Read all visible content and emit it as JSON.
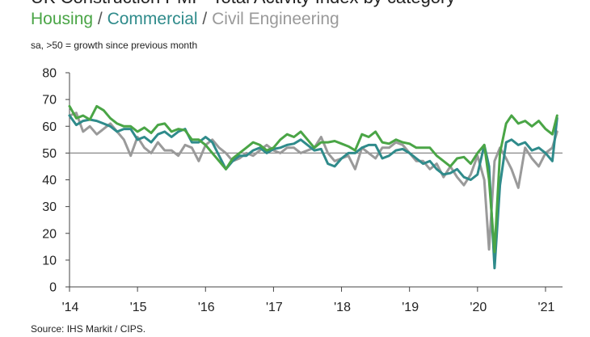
{
  "title": "UK Construction PMI - Total Activity Index by category",
  "subtitle": "sa, >50 = growth since previous month",
  "source": "Source: IHS Markit / CIPS.",
  "legend": {
    "separator": " / ",
    "items": [
      {
        "name": "Housing",
        "color": "#4aa546"
      },
      {
        "name": "Commercial",
        "color": "#2f8b8b"
      },
      {
        "name": "Civil Engineering",
        "color": "#9a9a9a"
      }
    ]
  },
  "chart_data": {
    "type": "line",
    "title": "UK Construction PMI - Total Activity Index by category",
    "ylabel": "sa, >50 = growth since previous month",
    "xlabel": "",
    "ylim": [
      0,
      80
    ],
    "yticks": [
      "0",
      "10",
      "20",
      "30",
      "40",
      "50",
      "60",
      "70",
      "80"
    ],
    "xlim": [
      2014.0,
      2021.25
    ],
    "xticks": [
      {
        "label": "'14",
        "x": 2014
      },
      {
        "label": "'15",
        "x": 2015
      },
      {
        "label": "'16",
        "x": 2016
      },
      {
        "label": "'17",
        "x": 2017
      },
      {
        "label": "'18",
        "x": 2018
      },
      {
        "label": "'19",
        "x": 2019
      },
      {
        "label": "'20",
        "x": 2020
      },
      {
        "label": "'21",
        "x": 2021
      }
    ],
    "reference_line": 50,
    "series": [
      {
        "name": "Housing",
        "color": "#4aa546",
        "x": [
          2014.0,
          2014.1,
          2014.2,
          2014.3,
          2014.4,
          2014.5,
          2014.6,
          2014.7,
          2014.8,
          2014.9,
          2015.0,
          2015.1,
          2015.2,
          2015.3,
          2015.4,
          2015.5,
          2015.6,
          2015.7,
          2015.8,
          2015.9,
          2016.0,
          2016.1,
          2016.2,
          2016.3,
          2016.4,
          2016.5,
          2016.6,
          2016.7,
          2016.8,
          2016.9,
          2017.0,
          2017.1,
          2017.2,
          2017.3,
          2017.4,
          2017.5,
          2017.6,
          2017.7,
          2017.8,
          2017.9,
          2018.0,
          2018.1,
          2018.2,
          2018.3,
          2018.4,
          2018.5,
          2018.6,
          2018.7,
          2018.8,
          2018.9,
          2019.0,
          2019.1,
          2019.2,
          2019.3,
          2019.4,
          2019.5,
          2019.6,
          2019.7,
          2019.8,
          2019.9,
          2020.0,
          2020.1,
          2020.17,
          2020.25,
          2020.33,
          2020.42,
          2020.5,
          2020.6,
          2020.7,
          2020.8,
          2020.9,
          2021.0,
          2021.1,
          2021.17
        ],
        "values": [
          67.5,
          63,
          64,
          62.5,
          67.5,
          66,
          63,
          61,
          60,
          60,
          58,
          59.5,
          57.5,
          60.5,
          61,
          58,
          59,
          58.5,
          55,
          55,
          53,
          50,
          47,
          44,
          48,
          50,
          52,
          54,
          53,
          51,
          52,
          55,
          57,
          56,
          58,
          55,
          52,
          54,
          54,
          54.5,
          53.5,
          52.5,
          51,
          57,
          56,
          58,
          54,
          53.5,
          55,
          54,
          53.5,
          52,
          52,
          52,
          49,
          47,
          45,
          48,
          48.5,
          46,
          50,
          53,
          40,
          13,
          50,
          61,
          64,
          61,
          62,
          60,
          62,
          59,
          57,
          64
        ]
      },
      {
        "name": "Commercial",
        "color": "#2f8b8b",
        "x": [
          2014.0,
          2014.1,
          2014.2,
          2014.3,
          2014.4,
          2014.5,
          2014.6,
          2014.7,
          2014.8,
          2014.9,
          2015.0,
          2015.1,
          2015.2,
          2015.3,
          2015.4,
          2015.5,
          2015.6,
          2015.7,
          2015.8,
          2015.9,
          2016.0,
          2016.1,
          2016.2,
          2016.3,
          2016.4,
          2016.5,
          2016.6,
          2016.7,
          2016.8,
          2016.9,
          2017.0,
          2017.1,
          2017.2,
          2017.3,
          2017.4,
          2017.5,
          2017.6,
          2017.7,
          2017.8,
          2017.9,
          2018.0,
          2018.1,
          2018.2,
          2018.3,
          2018.4,
          2018.5,
          2018.6,
          2018.7,
          2018.8,
          2018.9,
          2019.0,
          2019.1,
          2019.2,
          2019.3,
          2019.4,
          2019.5,
          2019.6,
          2019.7,
          2019.8,
          2019.9,
          2020.0,
          2020.1,
          2020.17,
          2020.25,
          2020.33,
          2020.42,
          2020.5,
          2020.6,
          2020.7,
          2020.8,
          2020.9,
          2021.0,
          2021.1,
          2021.17
        ],
        "values": [
          64,
          60.5,
          62,
          62.5,
          62,
          61,
          60,
          58,
          59,
          59,
          55,
          56,
          54,
          57,
          58,
          56,
          58,
          59,
          54,
          54,
          56,
          54,
          49,
          44,
          47,
          49,
          49,
          51,
          52,
          50,
          51.5,
          52,
          53,
          53.5,
          55,
          53,
          51,
          51.5,
          46,
          45,
          48,
          50,
          50,
          52,
          53,
          53,
          48,
          49,
          51,
          51.5,
          50,
          48,
          46,
          47,
          44,
          42,
          42.5,
          44,
          41,
          40,
          42,
          53,
          45,
          7,
          38,
          54,
          55,
          53,
          54,
          51,
          52,
          50,
          47,
          63
        ]
      },
      {
        "name": "Civil Engineering",
        "color": "#9a9a9a",
        "x": [
          2014.0,
          2014.1,
          2014.2,
          2014.3,
          2014.4,
          2014.5,
          2014.6,
          2014.7,
          2014.8,
          2014.9,
          2015.0,
          2015.1,
          2015.2,
          2015.3,
          2015.4,
          2015.5,
          2015.6,
          2015.7,
          2015.8,
          2015.9,
          2016.0,
          2016.1,
          2016.2,
          2016.3,
          2016.4,
          2016.5,
          2016.6,
          2016.7,
          2016.8,
          2016.9,
          2017.0,
          2017.1,
          2017.2,
          2017.3,
          2017.4,
          2017.5,
          2017.6,
          2017.7,
          2017.8,
          2017.9,
          2018.0,
          2018.1,
          2018.2,
          2018.3,
          2018.4,
          2018.5,
          2018.6,
          2018.7,
          2018.8,
          2018.9,
          2019.0,
          2019.1,
          2019.2,
          2019.3,
          2019.4,
          2019.5,
          2019.6,
          2019.7,
          2019.8,
          2019.9,
          2020.0,
          2020.1,
          2020.17,
          2020.25,
          2020.33,
          2020.42,
          2020.5,
          2020.6,
          2020.7,
          2020.8,
          2020.9,
          2021.0,
          2021.1,
          2021.17
        ],
        "values": [
          64,
          65,
          58,
          60,
          57,
          59,
          61,
          58,
          55,
          49,
          56,
          52,
          50,
          54,
          51,
          51,
          49,
          53,
          52,
          47,
          53,
          55,
          52,
          50,
          47,
          48,
          50,
          49,
          51,
          53,
          51,
          50,
          52,
          52,
          50,
          51,
          52,
          56,
          50,
          47,
          48,
          49,
          44,
          52,
          50,
          48,
          52,
          52,
          54,
          53,
          50,
          47,
          47,
          44,
          46,
          41,
          45,
          41,
          38,
          42,
          49,
          40,
          14,
          47,
          52,
          48,
          44,
          37,
          52,
          48,
          45,
          50,
          52,
          58
        ]
      }
    ]
  }
}
